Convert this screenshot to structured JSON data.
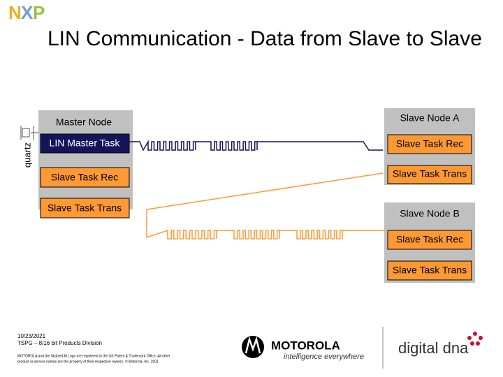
{
  "logo": [
    "N",
    "X",
    "P"
  ],
  "title": "LIN Communication - Data from Slave to Slave",
  "master": {
    "label": "Master Node",
    "quartz": "quartz",
    "tasks": [
      "LIN Master Task",
      "Slave Task Rec",
      "Slave Task Trans"
    ]
  },
  "slave_a": {
    "label": "Slave Node A",
    "tasks": [
      "Slave Task Rec",
      "Slave Task Trans"
    ]
  },
  "slave_b": {
    "label": "Slave Node B",
    "tasks": [
      "Slave Task Rec",
      "Slave Task Trans"
    ]
  },
  "footer": {
    "date": "10/23/2021",
    "division": "TSPG – 8/16 bit Products Division",
    "legal": [
      "MOTOROLA and the Stylized M Logo are registered in the US Patent & Trademark Office. All other",
      "product or service names are the property of their respective owners. © Motorola, Inc. 2001"
    ],
    "motorola": "MOTOROLA",
    "tagline": "intelligence everywhere",
    "dna": "digital dna"
  }
}
